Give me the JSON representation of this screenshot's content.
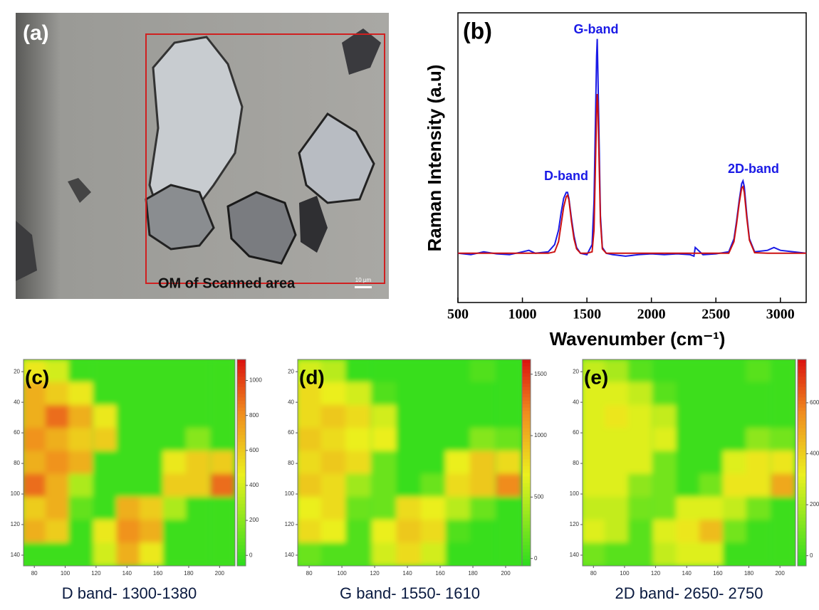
{
  "photo": {
    "label": "(a)",
    "caption": "OM of Scanned area",
    "scale_bar": "10 µm"
  },
  "chart_data": [
    {
      "type": "line",
      "label": "(b)",
      "x_label": "Wavenumber (cm⁻¹)",
      "y_label": "Raman Intensity (a.u)",
      "xlim": [
        500,
        3200
      ],
      "xticks": [
        500,
        1000,
        1500,
        2000,
        2500,
        3000
      ],
      "ylim": [
        0,
        100
      ],
      "annotations": [
        "G-band",
        "D-band",
        "2D-band"
      ],
      "x": [
        500,
        600,
        700,
        800,
        900,
        1000,
        1050,
        1100,
        1200,
        1250,
        1280,
        1300,
        1320,
        1340,
        1350,
        1360,
        1380,
        1400,
        1420,
        1450,
        1500,
        1540,
        1555,
        1565,
        1575,
        1580,
        1585,
        1595,
        1605,
        1620,
        1650,
        1700,
        1800,
        1900,
        2000,
        2100,
        2200,
        2300,
        2330,
        2340,
        2400,
        2500,
        2600,
        2640,
        2660,
        2680,
        2700,
        2710,
        2720,
        2740,
        2760,
        2800,
        2900,
        2950,
        3000,
        3100,
        3200
      ],
      "series": [
        {
          "color": "#1a1ae6",
          "values": [
            17,
            16.5,
            17.5,
            16.8,
            16.5,
            17.5,
            18,
            17,
            17.5,
            20,
            25,
            31,
            36,
            38,
            38,
            36,
            29,
            23,
            19,
            17,
            16.5,
            20,
            35,
            60,
            85,
            91,
            80,
            55,
            30,
            19,
            17,
            16.5,
            16,
            16.5,
            16.8,
            16.5,
            16.8,
            16.5,
            16,
            19,
            16.5,
            16.8,
            17.5,
            22,
            28,
            35,
            41,
            42,
            40,
            30,
            22,
            17.5,
            18,
            19,
            18,
            17.5,
            17
          ]
        },
        {
          "color": "#cc1111",
          "values": [
            17,
            17,
            17,
            17,
            17,
            17,
            17,
            17,
            17,
            17.5,
            21,
            27,
            33,
            36.5,
            37,
            35.5,
            28,
            22,
            18.5,
            17,
            17,
            17.5,
            25,
            45,
            66,
            72,
            68,
            48,
            28,
            18.5,
            17,
            17,
            17,
            17,
            17,
            17,
            17,
            17,
            17,
            17,
            17,
            17,
            17,
            21,
            27,
            34,
            39.5,
            40,
            38,
            29,
            21.5,
            17.2,
            17,
            17,
            17,
            17,
            17
          ]
        }
      ]
    },
    {
      "type": "heatmap",
      "label": "(c)",
      "caption": "D band- 1300-1380",
      "xlim": [
        73,
        210
      ],
      "ylim": [
        12,
        147
      ],
      "xticks": [
        80,
        100,
        120,
        140,
        160,
        180,
        200
      ],
      "yticks": [
        20,
        40,
        60,
        80,
        100,
        120,
        140
      ],
      "zlim": [
        -60,
        1120
      ],
      "zticks": [
        0,
        200,
        400,
        600,
        800,
        1000
      ],
      "x": [
        80,
        95,
        110,
        126,
        141,
        156,
        171,
        186,
        202
      ],
      "y": [
        19.5,
        34.5,
        49.5,
        64.5,
        79.5,
        94.5,
        109.5,
        124.5,
        139.5
      ],
      "z": [
        [
          500,
          400,
          0,
          0,
          0,
          0,
          0,
          0,
          0
        ],
        [
          700,
          600,
          500,
          0,
          0,
          0,
          0,
          0,
          0
        ],
        [
          700,
          900,
          700,
          500,
          0,
          0,
          0,
          0,
          0
        ],
        [
          800,
          700,
          600,
          600,
          0,
          0,
          0,
          200,
          0
        ],
        [
          700,
          800,
          700,
          0,
          0,
          0,
          500,
          600,
          600
        ],
        [
          900,
          700,
          300,
          0,
          0,
          0,
          600,
          600,
          900
        ],
        [
          600,
          700,
          100,
          0,
          700,
          600,
          300,
          0,
          0
        ],
        [
          700,
          600,
          0,
          500,
          800,
          700,
          0,
          0,
          0
        ],
        [
          0,
          0,
          0,
          400,
          700,
          500,
          0,
          0,
          0
        ]
      ]
    },
    {
      "type": "heatmap",
      "label": "(d)",
      "caption": "G band- 1550- 1610",
      "xlim": [
        73,
        210
      ],
      "ylim": [
        12,
        147
      ],
      "xticks": [
        80,
        100,
        120,
        140,
        160,
        180,
        200
      ],
      "yticks": [
        20,
        40,
        60,
        80,
        100,
        120,
        140
      ],
      "zlim": [
        -60,
        1620
      ],
      "zticks": [
        0,
        500,
        1000,
        1500
      ],
      "x": [
        80,
        95,
        110,
        126,
        141,
        156,
        171,
        186,
        202
      ],
      "y": [
        19.5,
        34.5,
        49.5,
        64.5,
        79.5,
        94.5,
        109.5,
        124.5,
        139.5
      ],
      "z": [
        [
          600,
          500,
          0,
          0,
          0,
          0,
          0,
          100,
          0
        ],
        [
          800,
          700,
          600,
          100,
          0,
          0,
          0,
          0,
          0
        ],
        [
          800,
          900,
          800,
          600,
          0,
          0,
          0,
          0,
          0
        ],
        [
          900,
          800,
          700,
          700,
          0,
          0,
          0,
          300,
          200
        ],
        [
          800,
          900,
          800,
          200,
          0,
          0,
          700,
          900,
          800
        ],
        [
          900,
          800,
          400,
          200,
          0,
          200,
          800,
          900,
          1200
        ],
        [
          700,
          800,
          200,
          200,
          800,
          700,
          500,
          200,
          0
        ],
        [
          800,
          700,
          100,
          700,
          900,
          800,
          100,
          0,
          0
        ],
        [
          200,
          100,
          100,
          600,
          800,
          600,
          0,
          0,
          0
        ]
      ]
    },
    {
      "type": "heatmap",
      "label": "(e)",
      "caption": "2D band- 2650- 2750",
      "xlim": [
        73,
        210
      ],
      "ylim": [
        12,
        147
      ],
      "xticks": [
        80,
        100,
        120,
        140,
        160,
        180,
        200
      ],
      "yticks": [
        20,
        40,
        60,
        80,
        100,
        120,
        140
      ],
      "zlim": [
        -40,
        770
      ],
      "zticks": [
        0,
        200,
        400,
        600
      ],
      "x": [
        80,
        95,
        110,
        126,
        141,
        156,
        171,
        186,
        202
      ],
      "y": [
        19.5,
        34.5,
        49.5,
        64.5,
        79.5,
        94.5,
        109.5,
        124.5,
        139.5
      ],
      "z": [
        [
          250,
          200,
          50,
          0,
          0,
          0,
          0,
          50,
          0
        ],
        [
          300,
          300,
          250,
          50,
          0,
          0,
          0,
          0,
          0
        ],
        [
          300,
          350,
          300,
          250,
          0,
          0,
          0,
          0,
          0
        ],
        [
          300,
          300,
          300,
          300,
          0,
          0,
          0,
          150,
          100
        ],
        [
          300,
          300,
          300,
          100,
          0,
          0,
          300,
          350,
          350
        ],
        [
          300,
          300,
          150,
          100,
          0,
          100,
          350,
          350,
          500
        ],
        [
          250,
          250,
          100,
          100,
          300,
          300,
          250,
          100,
          0
        ],
        [
          300,
          250,
          50,
          300,
          350,
          450,
          100,
          0,
          0
        ],
        [
          100,
          50,
          50,
          250,
          300,
          300,
          0,
          0,
          0
        ]
      ]
    }
  ]
}
